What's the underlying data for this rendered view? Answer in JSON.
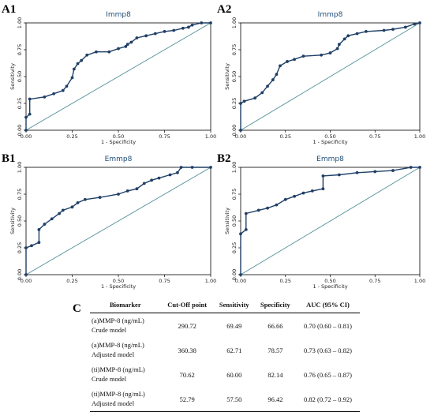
{
  "figure": {
    "colors": {
      "roc": "#1f3f66",
      "reference": "#4f8e96",
      "title": "#1f4e79",
      "frame": "#000000"
    },
    "table": {
      "letter": "C",
      "headers": [
        "Biomarker",
        "Cut-Off point",
        "Sensitivity",
        "Specificity",
        "AUC (95% CI)"
      ],
      "rows": [
        {
          "biomarker_line1": "(a)MMP-8 (ng/mL)",
          "biomarker_line2": "Crude model",
          "cutoff": "290.72",
          "sensitivity": "69.49",
          "specificity": "66.66",
          "auc": "0.70 (0.60 – 0.81)"
        },
        {
          "biomarker_line1": "(a)MMP-8 (ng/mL)",
          "biomarker_line2": "Adjusted model",
          "cutoff": "360.38",
          "sensitivity": "62.71",
          "specificity": "78.57",
          "auc": "0.73 (0.63 – 0.82)"
        },
        {
          "biomarker_line1": "(ti)MMP-8 (ng/mL)",
          "biomarker_line2": "Crude model",
          "cutoff": "70.62",
          "sensitivity": "60.00",
          "specificity": "82.14",
          "auc": "0.76 (0.65 – 0.87)"
        },
        {
          "biomarker_line1": "(ti)MMP-8 (ng/mL)",
          "biomarker_line2": "Adjusted model",
          "cutoff": "52.79",
          "sensitivity": "57.50",
          "specificity": "96.42",
          "auc": "0.82 (0.72 – 0.92)"
        }
      ]
    }
  },
  "chart_data": [
    {
      "panel": "A1",
      "type": "line",
      "title": "Immp8",
      "xlabel": "1 - Specificity",
      "ylabel": "Sensitivity",
      "xlim": [
        0,
        1
      ],
      "ylim": [
        0,
        1
      ],
      "xticks": [
        "0.00",
        "0.25",
        "0.50",
        "0.75",
        "1.00"
      ],
      "yticks": [
        "0.00",
        "0.25",
        "0.50",
        "0.75",
        "1.00"
      ],
      "reference_line": true,
      "x": [
        0,
        0,
        0.02,
        0.02,
        0.1,
        0.15,
        0.2,
        0.22,
        0.25,
        0.26,
        0.28,
        0.3,
        0.33,
        0.38,
        0.45,
        0.5,
        0.54,
        0.55,
        0.57,
        0.6,
        0.65,
        0.7,
        0.75,
        0.8,
        0.85,
        0.88,
        0.9,
        0.95,
        1.0
      ],
      "y": [
        0,
        0.12,
        0.15,
        0.29,
        0.31,
        0.34,
        0.37,
        0.41,
        0.49,
        0.57,
        0.62,
        0.65,
        0.7,
        0.73,
        0.73,
        0.76,
        0.78,
        0.8,
        0.82,
        0.86,
        0.88,
        0.9,
        0.92,
        0.93,
        0.95,
        0.96,
        0.98,
        1.0,
        1.0
      ]
    },
    {
      "panel": "A2",
      "type": "line",
      "title": "Immp8",
      "xlabel": "1 - Specificity",
      "ylabel": "Sensitivity",
      "xlim": [
        0,
        1
      ],
      "ylim": [
        0,
        1
      ],
      "xticks": [
        "0.00",
        "0.25",
        "0.50",
        "0.75",
        "1.00"
      ],
      "yticks": [
        "0.00",
        "0.25",
        "0.50",
        "0.75",
        "1.00"
      ],
      "reference_line": true,
      "x": [
        0,
        0,
        0.02,
        0.08,
        0.12,
        0.15,
        0.18,
        0.2,
        0.22,
        0.26,
        0.3,
        0.35,
        0.45,
        0.5,
        0.54,
        0.55,
        0.58,
        0.6,
        0.65,
        0.7,
        0.8,
        0.85,
        0.92,
        0.97,
        1.0
      ],
      "y": [
        0,
        0.25,
        0.27,
        0.3,
        0.35,
        0.41,
        0.47,
        0.52,
        0.6,
        0.64,
        0.66,
        0.69,
        0.7,
        0.72,
        0.76,
        0.8,
        0.85,
        0.88,
        0.9,
        0.92,
        0.93,
        0.94,
        0.96,
        0.99,
        1.0
      ]
    },
    {
      "panel": "B1",
      "type": "line",
      "title": "Emmp8",
      "xlabel": "1 - Specificity",
      "ylabel": "Sensitivity",
      "xlim": [
        0,
        1
      ],
      "ylim": [
        0,
        1
      ],
      "xticks": [
        "0.00",
        "0.25",
        "0.50",
        "0.75",
        "1.00"
      ],
      "yticks": [
        "0.00",
        "0.25",
        "0.50",
        "0.75",
        "1.00"
      ],
      "reference_line": true,
      "x": [
        0,
        0,
        0.03,
        0.07,
        0.07,
        0.1,
        0.14,
        0.18,
        0.2,
        0.25,
        0.28,
        0.32,
        0.4,
        0.5,
        0.55,
        0.6,
        0.64,
        0.68,
        0.72,
        0.78,
        0.82,
        0.84,
        0.9,
        1.0
      ],
      "y": [
        0,
        0.25,
        0.27,
        0.3,
        0.42,
        0.47,
        0.52,
        0.57,
        0.6,
        0.63,
        0.67,
        0.7,
        0.72,
        0.75,
        0.78,
        0.8,
        0.85,
        0.88,
        0.9,
        0.93,
        0.95,
        1.0,
        1.0,
        1.0
      ]
    },
    {
      "panel": "B2",
      "type": "line",
      "title": "Emmp8",
      "xlabel": "1 - Specificity",
      "ylabel": "Sensitivity",
      "xlim": [
        0,
        1
      ],
      "ylim": [
        0,
        1
      ],
      "xticks": [
        "0.00",
        "0.25",
        "0.50",
        "0.75",
        "1.00"
      ],
      "yticks": [
        "0.00",
        "0.25",
        "0.50",
        "0.75",
        "1.00"
      ],
      "reference_line": true,
      "x": [
        0,
        0,
        0.03,
        0.03,
        0.1,
        0.15,
        0.2,
        0.25,
        0.3,
        0.35,
        0.4,
        0.46,
        0.46,
        0.55,
        0.65,
        0.75,
        0.85,
        0.95,
        1.0
      ],
      "y": [
        0,
        0.38,
        0.42,
        0.57,
        0.6,
        0.62,
        0.65,
        0.7,
        0.73,
        0.76,
        0.78,
        0.8,
        0.92,
        0.93,
        0.95,
        0.96,
        0.97,
        1.0,
        1.0
      ]
    }
  ]
}
